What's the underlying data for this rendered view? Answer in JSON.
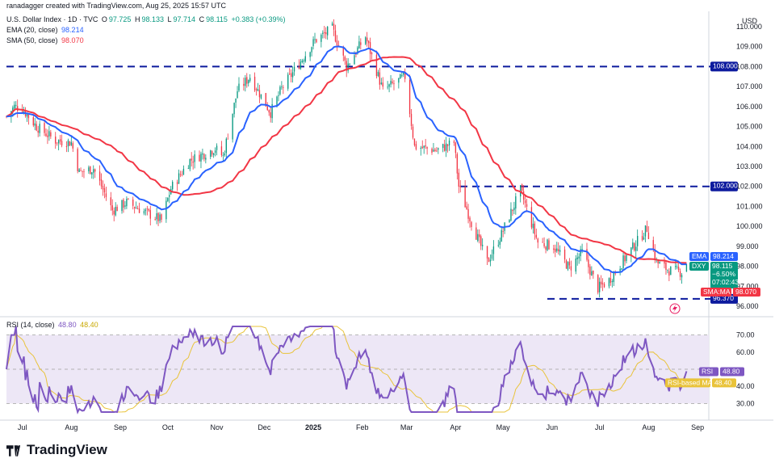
{
  "header": {
    "credit": "ranadagger created with TradingView.com, Aug 25, 2025 15:57 UTC",
    "symbol": "U.S. Dollar Index · 1D · TVC",
    "ohlc": {
      "o_label": "O",
      "o": "97.725",
      "h_label": "H",
      "h": "98.133",
      "l_label": "L",
      "l": "97.714",
      "c_label": "C",
      "c": "98.115",
      "chg": "+0.383 (+0.39%)"
    },
    "ema_label": "EMA (20, close)",
    "ema_value": "98.214",
    "sma_label": "SMA (50, close)",
    "sma_value": "98.070",
    "currency": "USD"
  },
  "rsi_header": {
    "label": "RSI (14, close)",
    "rsi": "48.80",
    "ma": "48.40"
  },
  "price_tags": {
    "ema": {
      "name": "EMA",
      "value": "98.214"
    },
    "dxy": {
      "name": "DXY",
      "value": "98.115",
      "change": "−6.50%",
      "countdown": "07:02:43"
    },
    "sma": {
      "name": "SMA:MA",
      "value": "98.070"
    },
    "r1": "108.000",
    "r2": "102.000",
    "s1": "96.370"
  },
  "rsi_tags": {
    "rsi": {
      "name": "RSI",
      "value": "48.80"
    },
    "ma": {
      "name": "RSI-based MA",
      "value": "48.40"
    }
  },
  "brand": "TradingView",
  "colors": {
    "up": "#089981",
    "down": "#f23645",
    "ema": "#2962ff",
    "sma": "#f23645",
    "level": "#0d1b9e",
    "rsi": "#7e57c2",
    "rsi_ma": "#e9c33a",
    "band": "#ede7f6"
  },
  "chart_data": {
    "type": "candlestick",
    "title": "U.S. Dollar Index · 1D · TVC",
    "x_ticks": [
      "Jul",
      "Aug",
      "Sep",
      "Oct",
      "Nov",
      "Dec",
      "2025",
      "Feb",
      "Mar",
      "Apr",
      "May",
      "Jun",
      "Jul",
      "Aug",
      "Sep"
    ],
    "y_ticks": [
      "110.000",
      "109.000",
      "108.000",
      "107.000",
      "106.000",
      "105.000",
      "104.000",
      "103.000",
      "102.000",
      "101.000",
      "100.000",
      "99.000",
      "98.000",
      "97.000",
      "96.000"
    ],
    "ylim": [
      95.8,
      110.2
    ],
    "horizontal_levels": [
      108.0,
      102.0,
      96.37
    ],
    "close_anchors": [
      {
        "date": "2024-06-21",
        "close": 105.5
      },
      {
        "date": "2024-06-26",
        "close": 106.0
      },
      {
        "date": "2024-07-01",
        "close": 105.9
      },
      {
        "date": "2024-07-10",
        "close": 105.0
      },
      {
        "date": "2024-07-22",
        "close": 104.3
      },
      {
        "date": "2024-08-01",
        "close": 104.2
      },
      {
        "date": "2024-08-06",
        "close": 102.7
      },
      {
        "date": "2024-08-15",
        "close": 102.9
      },
      {
        "date": "2024-08-27",
        "close": 100.8
      },
      {
        "date": "2024-09-05",
        "close": 101.2
      },
      {
        "date": "2024-09-27",
        "close": 100.3
      },
      {
        "date": "2024-10-03",
        "close": 101.9
      },
      {
        "date": "2024-10-15",
        "close": 103.3
      },
      {
        "date": "2024-10-31",
        "close": 103.9
      },
      {
        "date": "2024-11-05",
        "close": 103.5
      },
      {
        "date": "2024-11-14",
        "close": 106.8
      },
      {
        "date": "2024-11-22",
        "close": 107.5
      },
      {
        "date": "2024-12-05",
        "close": 105.7
      },
      {
        "date": "2024-12-12",
        "close": 106.9
      },
      {
        "date": "2024-12-20",
        "close": 107.8
      },
      {
        "date": "2025-01-02",
        "close": 109.3
      },
      {
        "date": "2025-01-13",
        "close": 109.9
      },
      {
        "date": "2025-01-22",
        "close": 108.0
      },
      {
        "date": "2025-02-03",
        "close": 109.5
      },
      {
        "date": "2025-02-14",
        "close": 106.8
      },
      {
        "date": "2025-02-28",
        "close": 107.5
      },
      {
        "date": "2025-03-06",
        "close": 104.0
      },
      {
        "date": "2025-03-20",
        "close": 103.8
      },
      {
        "date": "2025-03-31",
        "close": 104.2
      },
      {
        "date": "2025-04-03",
        "close": 102.0
      },
      {
        "date": "2025-04-11",
        "close": 100.2
      },
      {
        "date": "2025-04-21",
        "close": 98.2
      },
      {
        "date": "2025-04-30",
        "close": 99.6
      },
      {
        "date": "2025-05-12",
        "close": 101.8
      },
      {
        "date": "2025-05-23",
        "close": 99.2
      },
      {
        "date": "2025-06-02",
        "close": 99.0
      },
      {
        "date": "2025-06-12",
        "close": 97.9
      },
      {
        "date": "2025-06-20",
        "close": 98.7
      },
      {
        "date": "2025-06-30",
        "close": 96.9
      },
      {
        "date": "2025-07-07",
        "close": 97.3
      },
      {
        "date": "2025-07-18",
        "close": 98.5
      },
      {
        "date": "2025-07-31",
        "close": 99.9
      },
      {
        "date": "2025-08-06",
        "close": 98.2
      },
      {
        "date": "2025-08-14",
        "close": 97.8
      },
      {
        "date": "2025-08-22",
        "close": 97.7
      },
      {
        "date": "2025-08-25",
        "close": 98.115
      }
    ],
    "rsi": {
      "ylim": [
        25,
        75
      ],
      "ticks": [
        "70.00",
        "60.00",
        "40.00",
        "30.00"
      ],
      "bands": [
        30,
        70
      ],
      "midline": 50,
      "current": 48.8,
      "ma_current": 48.4
    }
  }
}
